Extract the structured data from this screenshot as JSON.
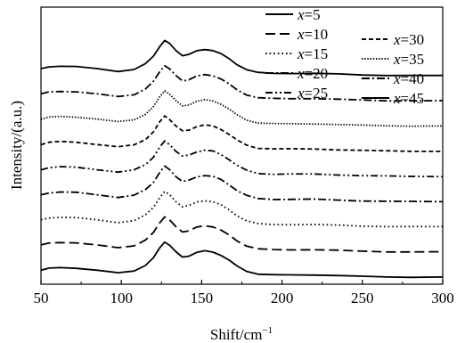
{
  "chart_data": {
    "type": "line",
    "title": "",
    "xlabel": "Shift/cm",
    "xlabel_superscript": "−1",
    "ylabel": "Intensity/(a.u.)",
    "xlim": [
      50,
      300
    ],
    "x_ticks": [
      50,
      100,
      150,
      200,
      250,
      300
    ],
    "y_ticks_shown": false,
    "grid": false,
    "legend_placement": "top-right",
    "series": [
      {
        "name": "x=5",
        "var": "x",
        "value": "5",
        "dash": "solid",
        "offset": 0
      },
      {
        "name": "x=10",
        "var": "x",
        "value": "10",
        "dash": "longdash",
        "offset": 1
      },
      {
        "name": "x=15",
        "var": "x",
        "value": "15",
        "dash": "dot",
        "offset": 2
      },
      {
        "name": "x=20",
        "var": "x",
        "value": "20",
        "dash": "dashdot",
        "offset": 3
      },
      {
        "name": "x=25",
        "var": "x",
        "value": "25",
        "dash": "dashdotdot",
        "offset": 4
      },
      {
        "name": "x=30",
        "var": "x",
        "value": "30",
        "dash": "shortdash",
        "offset": 5
      },
      {
        "name": "x=35",
        "var": "x",
        "value": "35",
        "dash": "densedot",
        "offset": 6
      },
      {
        "name": "x=40",
        "var": "x",
        "value": "40",
        "dash": "dashdot",
        "offset": 7
      },
      {
        "name": "x=45",
        "var": "x",
        "value": "45",
        "dash": "solid",
        "offset": 8
      }
    ],
    "profile_x": [
      50,
      55,
      62,
      72,
      85,
      98,
      108,
      115,
      120,
      124,
      127,
      130,
      134,
      138,
      142,
      147,
      152,
      157,
      162,
      167,
      172,
      178,
      185,
      195,
      205,
      220,
      235,
      250,
      265,
      280,
      300
    ],
    "profile_y": [
      0.55,
      0.63,
      0.66,
      0.64,
      0.55,
      0.45,
      0.53,
      0.75,
      1.05,
      1.45,
      1.68,
      1.55,
      1.28,
      1.08,
      1.12,
      1.26,
      1.32,
      1.28,
      1.15,
      0.95,
      0.72,
      0.52,
      0.4,
      0.37,
      0.37,
      0.37,
      0.34,
      0.31,
      0.29,
      0.28,
      0.28
    ],
    "offset_step": 1,
    "ylim": [
      0,
      11
    ]
  }
}
